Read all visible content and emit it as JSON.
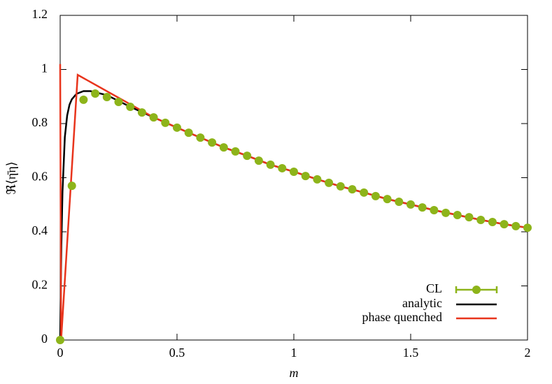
{
  "chart_data": {
    "type": "line",
    "x_label": "m",
    "y_label": "ℜ⟨η̄η⟩",
    "xlim": [
      0,
      2
    ],
    "ylim": [
      0,
      1.2
    ],
    "xticks": [
      0,
      0.5,
      1,
      1.5,
      2
    ],
    "yticks": [
      0,
      0.2,
      0.4,
      0.6,
      0.8,
      1,
      1.2
    ],
    "legend": "lower right",
    "series": [
      {
        "name": "CL",
        "color": "#8db41a",
        "marker": "circle",
        "x": [
          0,
          0.05,
          0.1,
          0.15,
          0.2,
          0.25,
          0.3,
          0.35,
          0.4,
          0.45,
          0.5,
          0.55,
          0.6,
          0.65,
          0.7,
          0.75,
          0.8,
          0.85,
          0.9,
          0.95,
          1,
          1.05,
          1.1,
          1.15,
          1.2,
          1.25,
          1.3,
          1.35,
          1.4,
          1.45,
          1.5,
          1.55,
          1.6,
          1.65,
          1.7,
          1.75,
          1.8,
          1.85,
          1.9,
          1.95,
          2
        ],
        "values": [
          0,
          0.57,
          0.888,
          0.911,
          0.898,
          0.88,
          0.862,
          0.841,
          0.823,
          0.803,
          0.785,
          0.766,
          0.748,
          0.73,
          0.712,
          0.697,
          0.681,
          0.663,
          0.648,
          0.635,
          0.622,
          0.606,
          0.594,
          0.581,
          0.568,
          0.557,
          0.545,
          0.532,
          0.521,
          0.511,
          0.501,
          0.49,
          0.48,
          0.47,
          0.462,
          0.454,
          0.444,
          0.436,
          0.428,
          0.421,
          0.415
        ]
      },
      {
        "name": "analytic",
        "color": "#000000",
        "x": [
          0,
          0.005,
          0.01,
          0.02,
          0.03,
          0.04,
          0.05,
          0.07,
          0.1,
          0.13,
          0.2,
          0.3,
          0.4,
          0.5,
          0.6,
          0.7,
          0.8,
          0.9,
          1,
          1.1,
          1.2,
          1.3,
          1.4,
          1.5,
          1.6,
          1.7,
          1.8,
          1.9,
          2
        ],
        "values": [
          0,
          0.35,
          0.55,
          0.75,
          0.83,
          0.87,
          0.89,
          0.91,
          0.92,
          0.92,
          0.905,
          0.862,
          0.823,
          0.785,
          0.748,
          0.712,
          0.681,
          0.648,
          0.622,
          0.594,
          0.568,
          0.545,
          0.521,
          0.501,
          0.48,
          0.462,
          0.444,
          0.428,
          0.415
        ]
      },
      {
        "name": "phase quenched",
        "color": "#e8341c",
        "x": [
          0,
          0.004,
          0.075,
          0.4,
          0.5,
          0.6,
          0.7,
          0.8,
          0.9,
          1,
          1.1,
          1.2,
          1.3,
          1.4,
          1.5,
          1.6,
          1.7,
          1.8,
          1.9,
          2
        ],
        "values": [
          1.02,
          0,
          0.98,
          0.823,
          0.785,
          0.748,
          0.712,
          0.681,
          0.648,
          0.622,
          0.594,
          0.568,
          0.545,
          0.521,
          0.501,
          0.48,
          0.462,
          0.444,
          0.428,
          0.415
        ]
      }
    ]
  }
}
